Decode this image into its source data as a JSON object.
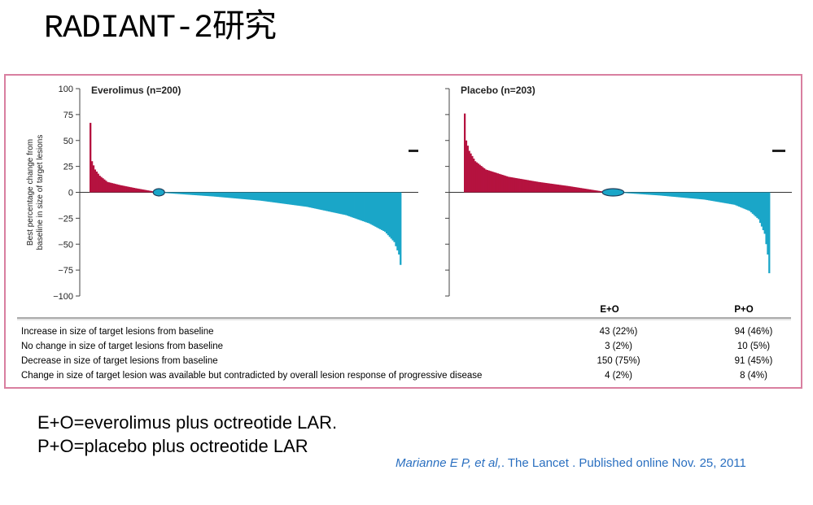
{
  "title": "RADIANT-2研究",
  "chart_data": [
    {
      "type": "bar",
      "title": "Everolimus (n=200)",
      "ylabel": "Best percentage change from baseline in size of target lesions",
      "ylim": [
        -100,
        100
      ],
      "yticks": [
        100,
        75,
        50,
        25,
        0,
        -25,
        -50,
        -75,
        -100
      ],
      "n": 200,
      "colors": {
        "increase": "#b5123f",
        "decrease": "#1aa6c8"
      },
      "profile": [
        {
          "rank": 1,
          "value": 67
        },
        {
          "rank": 2,
          "value": 30
        },
        {
          "rank": 4,
          "value": 22
        },
        {
          "rank": 7,
          "value": 16
        },
        {
          "rank": 12,
          "value": 10
        },
        {
          "rank": 20,
          "value": 7
        },
        {
          "rank": 30,
          "value": 4
        },
        {
          "rank": 43,
          "value": 0.5
        },
        {
          "rank": 44,
          "value": 0
        },
        {
          "rank": 46,
          "value": 0
        },
        {
          "rank": 47,
          "value": -0.5
        },
        {
          "rank": 80,
          "value": -4
        },
        {
          "rank": 110,
          "value": -8
        },
        {
          "rank": 140,
          "value": -14
        },
        {
          "rank": 165,
          "value": -22
        },
        {
          "rank": 180,
          "value": -30
        },
        {
          "rank": 190,
          "value": -38
        },
        {
          "rank": 196,
          "value": -48
        },
        {
          "rank": 199,
          "value": -60
        },
        {
          "rank": 200,
          "value": -70
        }
      ],
      "marker_right_value": 40
    },
    {
      "type": "bar",
      "title": "Placebo (n=203)",
      "ylim": [
        -100,
        100
      ],
      "n": 203,
      "colors": {
        "increase": "#b5123f",
        "decrease": "#1aa6c8"
      },
      "profile": [
        {
          "rank": 1,
          "value": 76
        },
        {
          "rank": 2,
          "value": 50
        },
        {
          "rank": 4,
          "value": 40
        },
        {
          "rank": 8,
          "value": 30
        },
        {
          "rank": 15,
          "value": 22
        },
        {
          "rank": 30,
          "value": 15
        },
        {
          "rank": 50,
          "value": 10
        },
        {
          "rank": 70,
          "value": 6
        },
        {
          "rank": 94,
          "value": 0.5
        },
        {
          "rank": 95,
          "value": 0
        },
        {
          "rank": 104,
          "value": 0
        },
        {
          "rank": 105,
          "value": -0.5
        },
        {
          "rank": 130,
          "value": -3
        },
        {
          "rank": 160,
          "value": -7
        },
        {
          "rank": 180,
          "value": -12
        },
        {
          "rank": 190,
          "value": -18
        },
        {
          "rank": 196,
          "value": -26
        },
        {
          "rank": 200,
          "value": -40
        },
        {
          "rank": 202,
          "value": -60
        },
        {
          "rank": 203,
          "value": -78
        }
      ],
      "marker_right_value": 40
    },
    {
      "type": "table",
      "columns": [
        "",
        "E+O",
        "P+O"
      ],
      "rows": [
        {
          "label": "Increase in size of target lesions from baseline",
          "eo": "43 (22%)",
          "po": "94 (46%)"
        },
        {
          "label": "No change in size of target lesions from baseline",
          "eo": "3 (2%)",
          "po": "10 (5%)"
        },
        {
          "label": "Decrease in size of target lesions from baseline",
          "eo": "150 (75%)",
          "po": "91 (45%)"
        },
        {
          "label": "Change in size of target lesion was available but contradicted by overall lesion response of progressive disease",
          "eo": "4 (2%)",
          "po": "8 (4%)"
        }
      ]
    }
  ],
  "footnotes": {
    "line1": "E+O=everolimus plus octreotide LAR.",
    "line2": "P+O=placebo plus octreotide LAR"
  },
  "citation": {
    "authors": "Marianne E P, et al,",
    "journal": ". The Lancet . Published online Nov. 25, 2011"
  }
}
